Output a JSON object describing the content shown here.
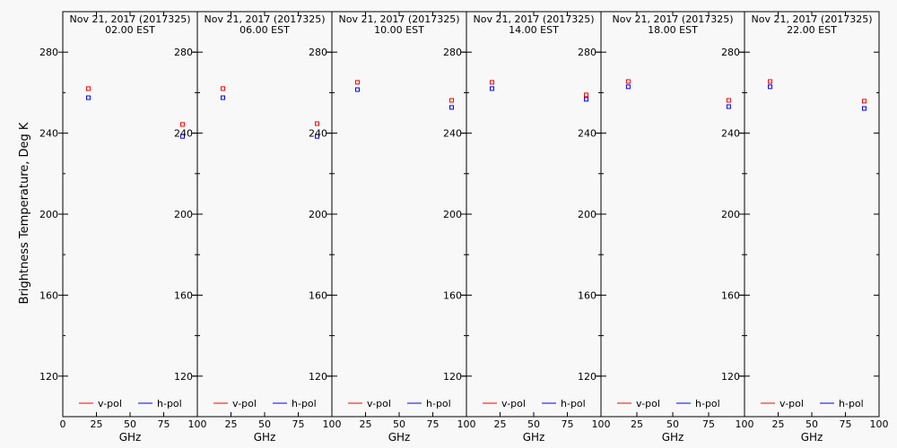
{
  "chart_data": {
    "type": "scatter",
    "ylabel": "Brightness Temperature, Deg K",
    "xlabel": "GHz",
    "xlim": [
      0,
      100
    ],
    "ylim": [
      100,
      300
    ],
    "x_ticks": [
      "0",
      "25",
      "50",
      "75",
      "100"
    ],
    "y_ticks": [
      120,
      160,
      200,
      240,
      280
    ],
    "grid": false,
    "legend": {
      "placement": "bottom",
      "entries": [
        {
          "label": "v-pol",
          "color": "#ff0000"
        },
        {
          "label": "h-pol",
          "color": "#0000ff"
        }
      ]
    },
    "panels": [
      {
        "title": "Nov 21, 2017 (2017325)",
        "subtitle": "02.00 EST",
        "series": [
          {
            "name": "v-pol",
            "x": [
              19,
              89
            ],
            "y": [
              262.0,
              244.3
            ]
          },
          {
            "name": "h-pol",
            "x": [
              19,
              89
            ],
            "y": [
              257.5,
              238.4
            ]
          }
        ]
      },
      {
        "title": "Nov 21, 2017 (2017325)",
        "subtitle": "06.00 EST",
        "series": [
          {
            "name": "v-pol",
            "x": [
              19,
              89
            ],
            "y": [
              262.0,
              244.7
            ]
          },
          {
            "name": "h-pol",
            "x": [
              19,
              89
            ],
            "y": [
              257.5,
              238.4
            ]
          }
        ]
      },
      {
        "title": "Nov 21, 2017 (2017325)",
        "subtitle": "10.00 EST",
        "series": [
          {
            "name": "v-pol",
            "x": [
              19,
              89
            ],
            "y": [
              265.1,
              256.2
            ]
          },
          {
            "name": "h-pol",
            "x": [
              19,
              89
            ],
            "y": [
              261.5,
              252.7
            ]
          }
        ]
      },
      {
        "title": "Nov 21, 2017 (2017325)",
        "subtitle": "14.00 EST",
        "series": [
          {
            "name": "v-pol",
            "x": [
              19,
              89
            ],
            "y": [
              265.1,
              258.9
            ]
          },
          {
            "name": "h-pol",
            "x": [
              19,
              89
            ],
            "y": [
              262.0,
              256.7
            ]
          }
        ]
      },
      {
        "title": "Nov 21, 2017 (2017325)",
        "subtitle": "18.00 EST",
        "series": [
          {
            "name": "v-pol",
            "x": [
              19,
              89
            ],
            "y": [
              265.5,
              256.2
            ]
          },
          {
            "name": "h-pol",
            "x": [
              19,
              89
            ],
            "y": [
              262.9,
              253.1
            ]
          }
        ]
      },
      {
        "title": "Nov 21, 2017 (2017325)",
        "subtitle": "22.00 EST",
        "series": [
          {
            "name": "v-pol",
            "x": [
              19,
              89
            ],
            "y": [
              265.5,
              255.8
            ]
          },
          {
            "name": "h-pol",
            "x": [
              19,
              89
            ],
            "y": [
              262.9,
              252.2
            ]
          }
        ]
      }
    ]
  }
}
